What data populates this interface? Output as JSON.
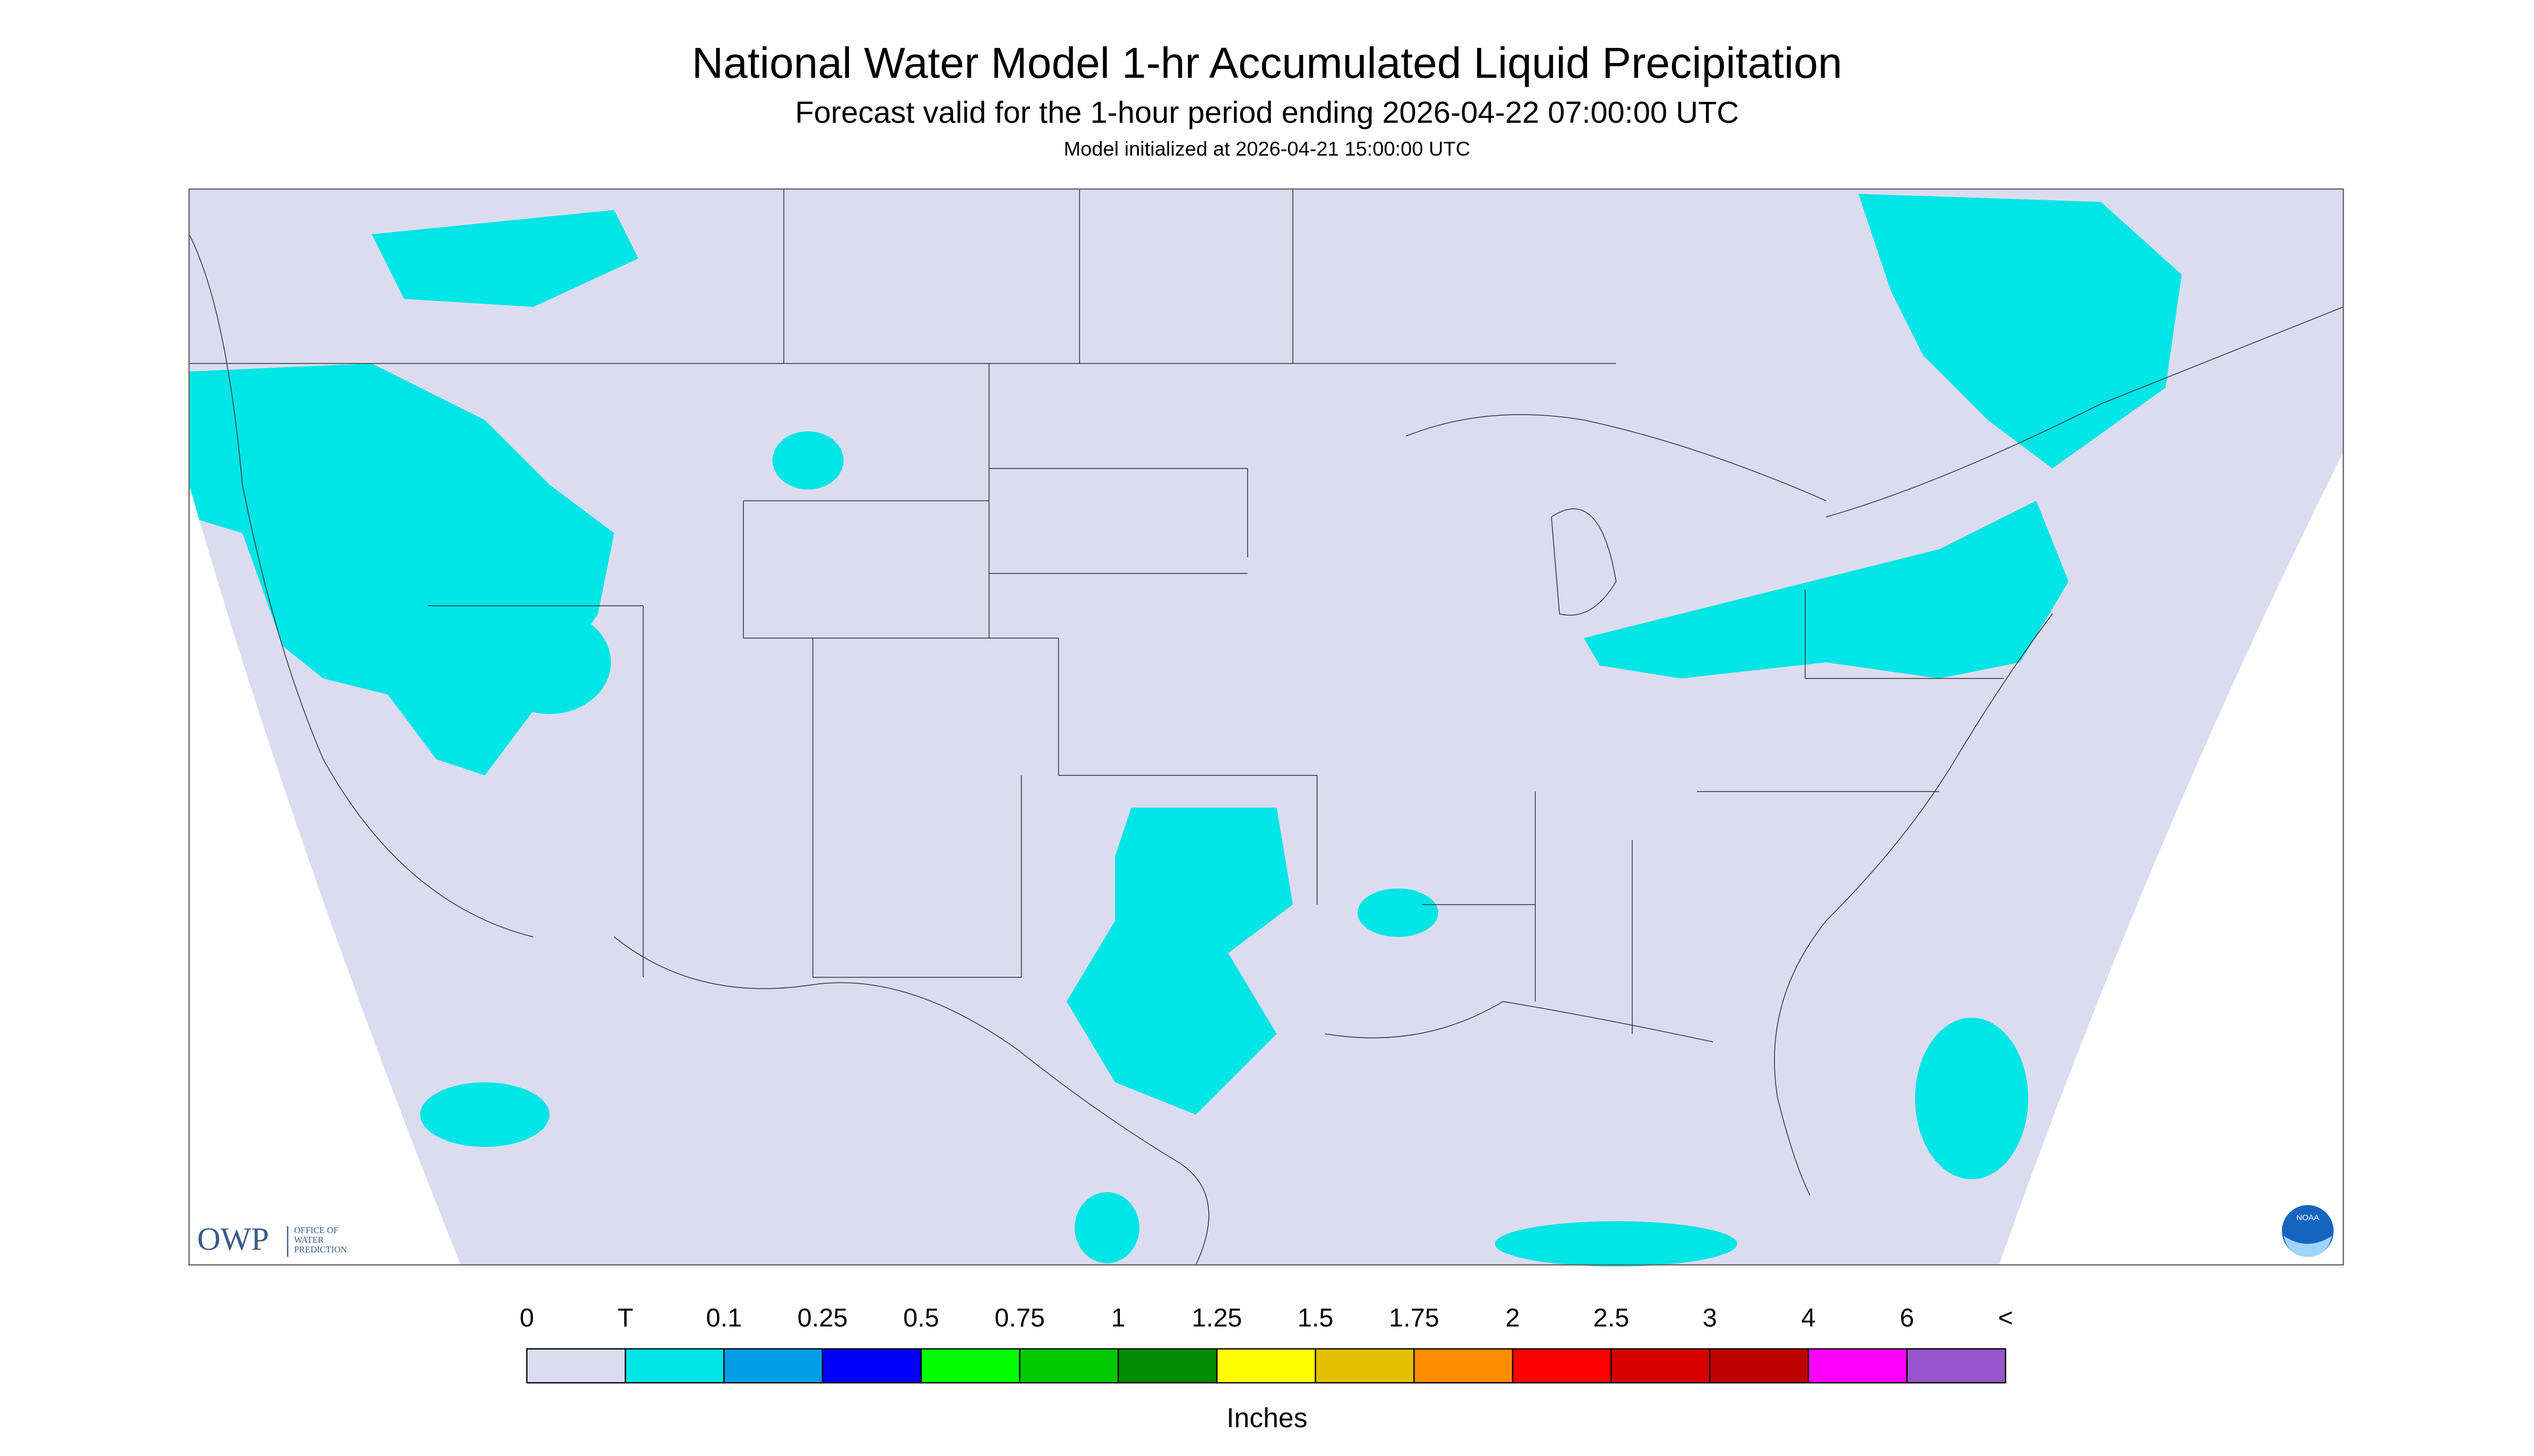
{
  "header": {
    "title": "National Water Model 1-hr Accumulated Liquid Precipitation",
    "subtitle": "Forecast valid for the 1-hour period ending 2026-04-22 07:00:00 UTC",
    "note": "Model initialized at 2026-04-21 15:00:00 UTC"
  },
  "logos": {
    "owp": "OWP",
    "owp_lines": [
      "OFFICE OF",
      "WATER",
      "PREDICTION"
    ],
    "noaa": "NOAA"
  },
  "legend": {
    "labels": [
      "0",
      "T",
      "0.1",
      "0.25",
      "0.5",
      "0.75",
      "1",
      "1.25",
      "1.5",
      "1.75",
      "2",
      "2.5",
      "3",
      "4",
      "6",
      "<"
    ],
    "colors": [
      "#dcdcf0",
      "#00e5e5",
      "#009ee8",
      "#0000ff",
      "#00ff00",
      "#00c800",
      "#008c00",
      "#ffff00",
      "#e5c000",
      "#ff8c00",
      "#ff0000",
      "#d70000",
      "#bf0000",
      "#ff00ff",
      "#9955cc"
    ],
    "unit": "Inches"
  }
}
